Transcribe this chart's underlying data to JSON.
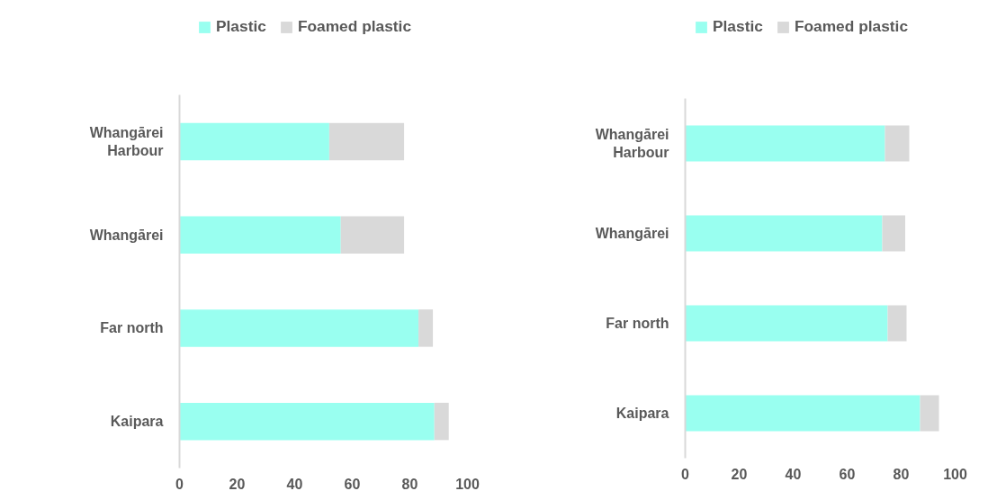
{
  "chart_data": [
    {
      "type": "bar",
      "orientation": "horizontal",
      "stacked": true,
      "categories": [
        "Whangārei Harbour",
        "Whangārei",
        "Far north",
        "Kaipara"
      ],
      "series": [
        {
          "name": "Plastic",
          "color": "#99fff0",
          "values": [
            52,
            56,
            83,
            88.5
          ]
        },
        {
          "name": "Foamed plastic",
          "color": "#d9d9d9",
          "values": [
            26,
            22,
            5,
            5
          ]
        }
      ],
      "xlim": [
        0,
        100
      ],
      "xticks": [
        0,
        20,
        40,
        60,
        80,
        100
      ],
      "grid": false,
      "legend": "top"
    },
    {
      "type": "bar",
      "orientation": "horizontal",
      "stacked": true,
      "categories": [
        "Whangārei Harbour",
        "Whangārei",
        "Far north",
        "Kaipara"
      ],
      "series": [
        {
          "name": "Plastic",
          "color": "#99fff0",
          "values": [
            74,
            73,
            75,
            87
          ]
        },
        {
          "name": "Foamed plastic",
          "color": "#d9d9d9",
          "values": [
            9,
            8.5,
            7,
            7
          ]
        }
      ],
      "xlim": [
        0,
        100
      ],
      "xticks": [
        0,
        20,
        40,
        60,
        80,
        100
      ],
      "grid": false,
      "legend": "top"
    }
  ]
}
